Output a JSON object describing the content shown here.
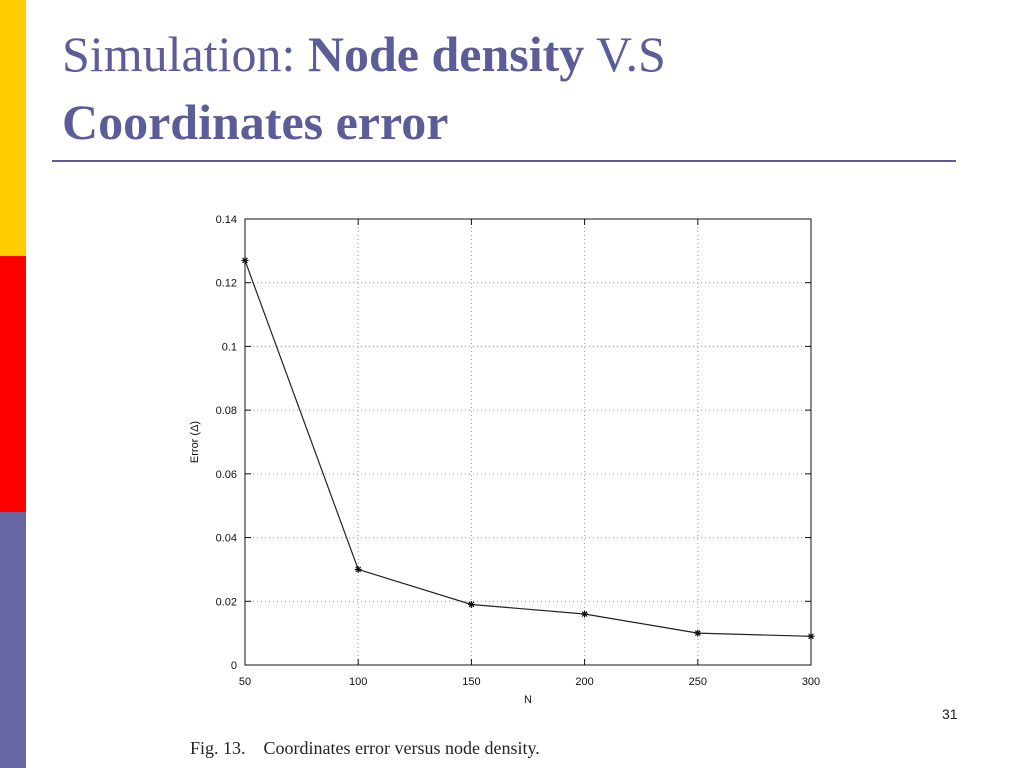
{
  "slide": {
    "title_part1": "Simulation: ",
    "title_bold1": "Node density",
    "title_part2": " V.S",
    "title_bold2": "Coordinates error",
    "caption": "Fig. 13.    Coordinates error versus node density.",
    "page_number": "31",
    "colors": {
      "title": "#5C5C99",
      "bar_yellow": "#FFCC00",
      "bar_red": "#FF0000",
      "bar_blue": "#6666A3"
    }
  },
  "chart_data": {
    "type": "line",
    "title": "",
    "xlabel": "N",
    "ylabel": "Error (Δ)",
    "xlim": [
      50,
      300
    ],
    "ylim": [
      0,
      0.14
    ],
    "x_ticks": [
      "50",
      "100",
      "150",
      "200",
      "250",
      "300"
    ],
    "y_ticks": [
      "0",
      "0.02",
      "0.04",
      "0.06",
      "0.08",
      "0.1",
      "0.12",
      "0.14"
    ],
    "grid": true,
    "marker": "asterisk",
    "series": [
      {
        "x": [
          50,
          100,
          150,
          200,
          250,
          300
        ],
        "values": [
          0.127,
          0.03,
          0.019,
          0.016,
          0.01,
          0.009
        ]
      }
    ]
  }
}
